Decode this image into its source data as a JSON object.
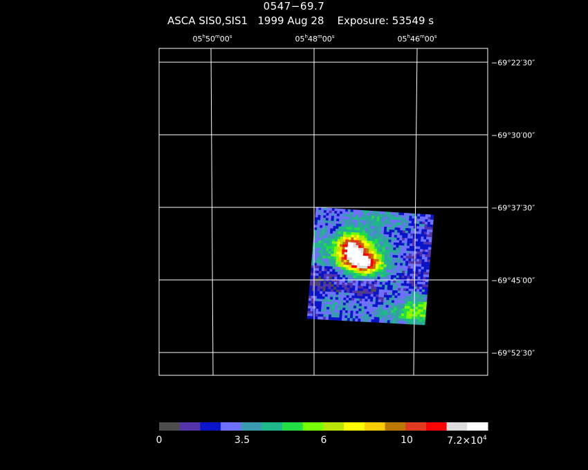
{
  "header": {
    "target": "0547−69.7",
    "info": "ASCA SIS0,SIS1   1999 Aug 28    Exposure: 53549 s"
  },
  "ra_ticks": [
    {
      "h": "05",
      "m": "50",
      "s": "00"
    },
    {
      "h": "05",
      "m": "48",
      "s": "00"
    },
    {
      "h": "05",
      "m": "46",
      "s": "00"
    }
  ],
  "dec_ticks": [
    "−69°22′30″",
    "−69°30′00″",
    "−69°37′30″",
    "−69°45′00″",
    "−69°52′30″"
  ],
  "colorbar": {
    "colors": [
      "#4d4d4d",
      "#5533aa",
      "#0a14c8",
      "#7070ff",
      "#3a9ab0",
      "#1fb88a",
      "#22dd44",
      "#77ff00",
      "#b8e600",
      "#ffff00",
      "#ffcc00",
      "#bb7700",
      "#e03a20",
      "#ff0000",
      "#dddddd",
      "#ffffff"
    ],
    "labels": {
      "l0": "0",
      "l1": "3.5",
      "l2": "6",
      "l3": "10",
      "l4_mant": "7.2×10",
      "l4_exp": "4"
    }
  }
}
